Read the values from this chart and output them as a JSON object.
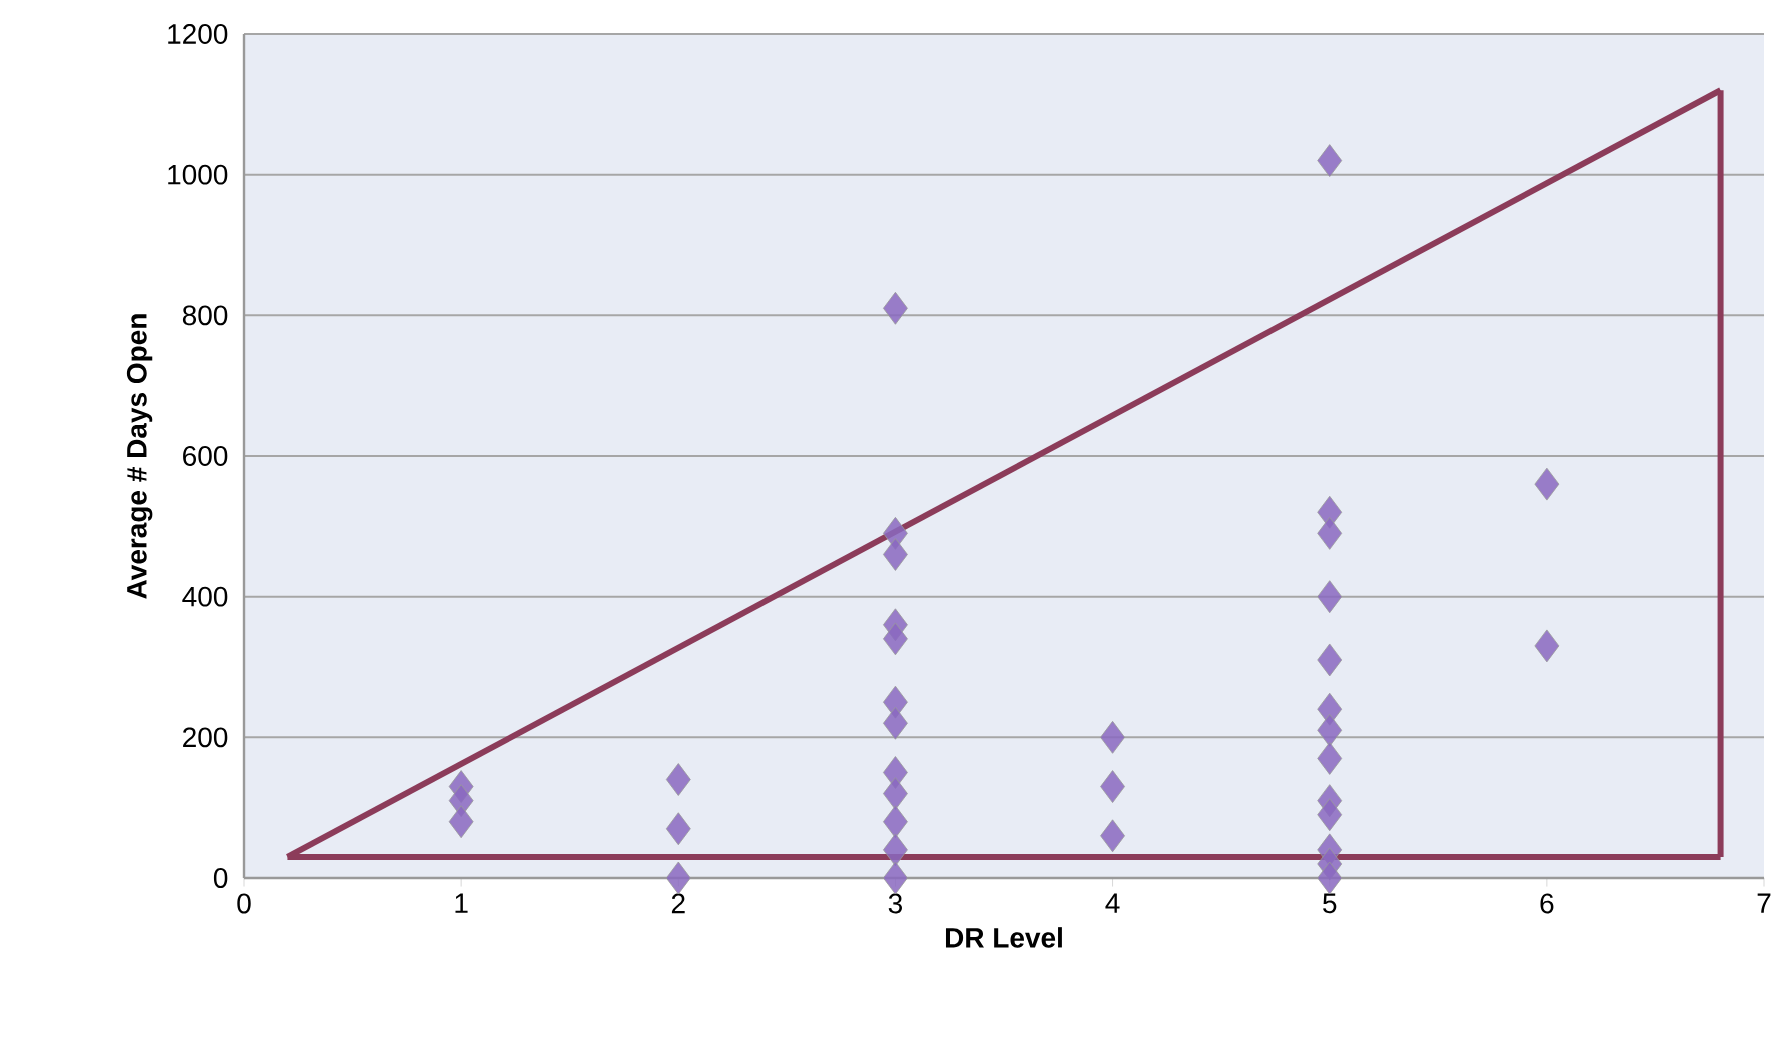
{
  "chart_data": {
    "type": "scatter",
    "xlabel": "DR Level",
    "ylabel": "Average # Days Open",
    "series": [
      {
        "color": "#8a68c0",
        "x": [
          1,
          1,
          1,
          2,
          2,
          2,
          3,
          3,
          3,
          3,
          3,
          3,
          3,
          3,
          3,
          3,
          3,
          3,
          4,
          4,
          4,
          5,
          5,
          5,
          5,
          5,
          5,
          5,
          5,
          5,
          5,
          5,
          5,
          5,
          6,
          6
        ],
        "values": [
          130,
          110,
          80,
          140,
          70,
          0,
          810,
          490,
          460,
          360,
          340,
          250,
          220,
          150,
          120,
          80,
          40,
          0,
          200,
          130,
          60,
          1020,
          520,
          490,
          400,
          310,
          240,
          210,
          170,
          110,
          90,
          40,
          20,
          0,
          560,
          330
        ]
      },
      {
        "type": "line",
        "marker": "none",
        "color": "#8c3c5a",
        "x": [
          0.2,
          6.8
        ],
        "values": [
          30,
          1120
        ]
      },
      {
        "type": "line",
        "marker": "none",
        "color": "#8c3c5a",
        "x": [
          0.2,
          6.8
        ],
        "values": [
          30,
          30
        ]
      },
      {
        "type": "line",
        "marker": "none",
        "color": "#8c3c5a",
        "x": [
          6.8,
          6.8
        ],
        "values": [
          30,
          1120
        ]
      }
    ],
    "xlim": [
      0,
      7
    ],
    "ylim": [
      0,
      1200
    ],
    "xticks": [
      0,
      1,
      2,
      3,
      4,
      5,
      6,
      7
    ],
    "yticks": [
      0,
      200,
      400,
      600,
      800,
      1000,
      1200
    ],
    "grid": "y",
    "marker": "diamond"
  }
}
